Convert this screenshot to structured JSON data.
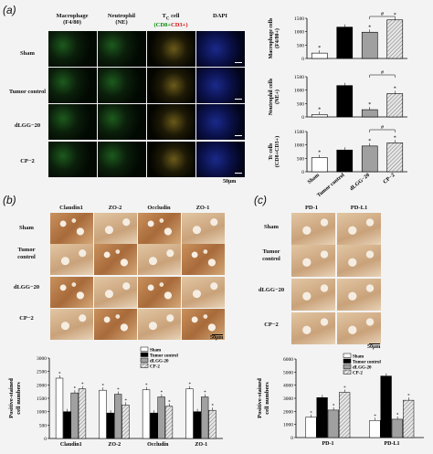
{
  "panel_a": {
    "label": "(a)",
    "col_headers": [
      {
        "line1": "Macrophage",
        "line2": "(F4/80)"
      },
      {
        "line1": "Neutrophil",
        "line2": "(NE)"
      },
      {
        "line1": "T",
        "sub": "C",
        "line1b": " cell",
        "line2a": "(CD8+",
        "line2b": "CD3+)"
      },
      {
        "line1": "DAPI",
        "line2": ""
      }
    ],
    "rows": [
      "Sham",
      "Tumor control",
      "dLGG−20",
      "CP−2"
    ],
    "scale_bar": "50μm"
  },
  "panel_b": {
    "label": "(b)",
    "col_headers": [
      "Claudin1",
      "ZO-2",
      "Occludin",
      "ZO-1"
    ],
    "rows": [
      {
        "l1": "Sham",
        "l2": ""
      },
      {
        "l1": "Tumor",
        "l2": "control"
      },
      {
        "l1": "dLGG−20",
        "l2": ""
      },
      {
        "l1": "CP−2",
        "l2": ""
      }
    ],
    "scale_bar": "50μm"
  },
  "panel_c": {
    "label": "(c)",
    "col_headers": [
      "PD-1",
      "PD-L1"
    ],
    "rows": [
      {
        "l1": "Sham",
        "l2": ""
      },
      {
        "l1": "Tumor",
        "l2": "control"
      },
      {
        "l1": "dLGG−20",
        "l2": ""
      },
      {
        "l1": "CP−2",
        "l2": ""
      }
    ],
    "scale_bar": "50μm"
  },
  "colors": {
    "sham": "#ffffff",
    "tumor": "#000000",
    "dlgg": "#a0a0a0",
    "cp2": "#d8d8d8"
  },
  "chart_data": [
    {
      "type": "bar",
      "id": "macrophage",
      "categories": [
        "Sham",
        "Tumor control",
        "dLGG−20",
        "CP−2"
      ],
      "values": [
        200,
        1170,
        980,
        1440
      ],
      "ylabel_l1": "Macrophage cells",
      "ylabel_l2": "(F4/80+)",
      "ylim": [
        0,
        1500
      ],
      "yticks": [
        0,
        500,
        1000,
        1500
      ],
      "annotations": [
        "*",
        "",
        "*",
        "*"
      ],
      "bracket": "#"
    },
    {
      "type": "bar",
      "id": "neutrophil",
      "categories": [
        "Sham",
        "Tumor control",
        "dLGG−20",
        "CP−2"
      ],
      "values": [
        90,
        1170,
        270,
        870
      ],
      "ylabel_l1": "Neutrophil cells",
      "ylabel_l2": "(NE+)",
      "ylim": [
        0,
        1500
      ],
      "yticks": [
        0,
        500,
        1000,
        1500
      ],
      "annotations": [
        "*",
        "",
        "*",
        "*"
      ],
      "bracket": "#"
    },
    {
      "type": "bar",
      "id": "tc",
      "categories": [
        "Sham",
        "Tumor control",
        "dLGG−20",
        "CP−2"
      ],
      "values": [
        530,
        810,
        960,
        1080
      ],
      "ylabel_l1": "Tc cells",
      "ylabel_l2": "(CD8+CD3+)",
      "ylim": [
        0,
        1500
      ],
      "yticks": [
        0,
        500,
        1000,
        1500
      ],
      "annotations": [
        "*",
        "",
        "*",
        "*"
      ],
      "bracket": "#"
    },
    {
      "type": "bar",
      "id": "tight_junction",
      "categories": [
        "Claudin1",
        "ZO-2",
        "Occludin",
        "ZO-1"
      ],
      "series": [
        {
          "name": "Sham",
          "values": [
            2250,
            1800,
            1820,
            1850
          ]
        },
        {
          "name": "Tumor control",
          "values": [
            1000,
            950,
            950,
            1000
          ]
        },
        {
          "name": "dLGG-20",
          "values": [
            1700,
            1650,
            1550,
            1550
          ]
        },
        {
          "name": "CP-2",
          "values": [
            1850,
            1250,
            1200,
            1050
          ]
        }
      ],
      "ylabel_l1": "Positive-stained",
      "ylabel_l2": "cell numbers",
      "ylim": [
        0,
        3000
      ],
      "yticks": [
        0,
        500,
        1000,
        1500,
        2000,
        2500,
        3000
      ]
    },
    {
      "type": "bar",
      "id": "pd",
      "categories": [
        "PD-1",
        "PD-L1"
      ],
      "series": [
        {
          "name": "Sham",
          "values": [
            1550,
            1300
          ]
        },
        {
          "name": "Tumor control",
          "values": [
            3050,
            4700
          ]
        },
        {
          "name": "dLGG-20",
          "values": [
            2100,
            1400
          ]
        },
        {
          "name": "CP-2",
          "values": [
            3450,
            2850
          ]
        }
      ],
      "ylabel_l1": "Positive-stained",
      "ylabel_l2": "cell numbers",
      "ylim": [
        0,
        6000
      ],
      "yticks": [
        0,
        1000,
        2000,
        3000,
        4000,
        5000,
        6000
      ]
    }
  ]
}
